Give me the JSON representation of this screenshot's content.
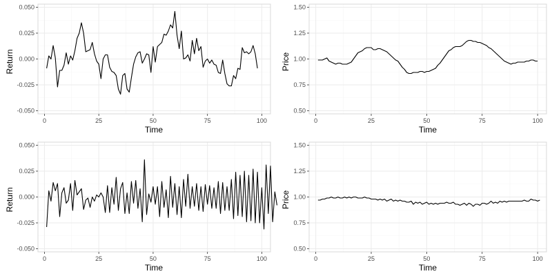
{
  "figure": {
    "panel_border_color": "#d9d9d9",
    "grid_major_color": "#ebebeb",
    "grid_minor_color": "#f4f4f4",
    "line_color": "#000000"
  },
  "chart_data": [
    {
      "type": "line",
      "position": "top-left",
      "xlabel": "Time",
      "ylabel": "Return",
      "xlim": [
        -3,
        104
      ],
      "ylim": [
        -0.053,
        0.053
      ],
      "x_ticks": [
        0,
        25,
        50,
        75,
        100
      ],
      "x_tick_labels": [
        "0",
        "25",
        "50",
        "75",
        "100"
      ],
      "y_ticks": [
        -0.05,
        -0.025,
        0,
        0.025,
        0.05
      ],
      "y_tick_labels": [
        "-0.050",
        "-0.025",
        "0.000",
        "0.025",
        "0.050"
      ],
      "grid": true,
      "series": [
        {
          "x_start": 1,
          "values": [
            -0.009,
            0.003,
            0.0,
            0.013,
            0.001,
            -0.027,
            -0.011,
            -0.011,
            -0.006,
            0.006,
            -0.005,
            0.003,
            -0.001,
            0.008,
            0.02,
            0.025,
            0.035,
            0.025,
            0.007,
            0.008,
            0.009,
            0.016,
            0.005,
            -0.002,
            -0.005,
            -0.019,
            0.0,
            0.004,
            0.004,
            -0.008,
            -0.012,
            -0.013,
            -0.016,
            -0.029,
            -0.034,
            -0.016,
            -0.014,
            -0.029,
            -0.032,
            -0.018,
            -0.005,
            0.002,
            0.006,
            0.007,
            -0.004,
            -0.0,
            0.005,
            0.004,
            -0.013,
            0.012,
            -0.003,
            0.012,
            0.014,
            0.016,
            0.024,
            0.023,
            0.027,
            0.033,
            0.03,
            0.046,
            0.023,
            0.01,
            0.027,
            0.0,
            0.001,
            0.004,
            -0.002,
            0.018,
            0.005,
            0.02,
            0.008,
            0.012,
            -0.008,
            -0.002,
            0.0,
            -0.004,
            -0.001,
            -0.005,
            -0.006,
            -0.013,
            -0.014,
            -0.001,
            -0.014,
            -0.024,
            -0.026,
            -0.026,
            -0.016,
            -0.019,
            -0.009,
            -0.01,
            0.011,
            0.006,
            0.007,
            0.005,
            0.007,
            0.013,
            0.005,
            -0.009
          ]
        }
      ]
    },
    {
      "type": "line",
      "position": "top-right",
      "xlabel": "Time",
      "ylabel": "Price",
      "xlim": [
        -3,
        104
      ],
      "ylim": [
        0.47,
        1.53
      ],
      "x_ticks": [
        0,
        25,
        50,
        75,
        100
      ],
      "x_tick_labels": [
        "0",
        "25",
        "50",
        "75",
        "100"
      ],
      "y_ticks": [
        0.5,
        0.75,
        1.0,
        1.25,
        1.5
      ],
      "y_tick_labels": [
        "0.50",
        "0.75",
        "1.00",
        "1.25",
        "1.50"
      ],
      "grid": true,
      "series": [
        {
          "x_start": 1,
          "values": [
            0.99,
            0.99,
            0.99,
            1.0,
            1.01,
            0.98,
            0.97,
            0.96,
            0.95,
            0.96,
            0.96,
            0.95,
            0.95,
            0.95,
            0.96,
            0.97,
            1.0,
            1.03,
            1.06,
            1.07,
            1.08,
            1.1,
            1.11,
            1.11,
            1.11,
            1.09,
            1.09,
            1.1,
            1.1,
            1.09,
            1.08,
            1.07,
            1.05,
            1.03,
            1.01,
            0.99,
            0.98,
            0.95,
            0.92,
            0.9,
            0.87,
            0.86,
            0.86,
            0.87,
            0.87,
            0.87,
            0.88,
            0.88,
            0.87,
            0.88,
            0.88,
            0.89,
            0.9,
            0.91,
            0.94,
            0.96,
            0.99,
            1.02,
            1.05,
            1.08,
            1.09,
            1.11,
            1.12,
            1.12,
            1.12,
            1.13,
            1.15,
            1.17,
            1.18,
            1.18,
            1.17,
            1.17,
            1.16,
            1.16,
            1.15,
            1.14,
            1.13,
            1.11,
            1.1,
            1.08,
            1.06,
            1.04,
            1.02,
            1.0,
            0.98,
            0.97,
            0.96,
            0.95,
            0.96,
            0.96,
            0.97,
            0.97,
            0.97,
            0.97,
            0.98,
            0.98,
            0.99,
            0.99,
            0.98,
            0.98
          ]
        }
      ]
    },
    {
      "type": "line",
      "position": "bottom-left",
      "xlabel": "Time",
      "ylabel": "Return",
      "xlim": [
        -3,
        104
      ],
      "ylim": [
        -0.053,
        0.053
      ],
      "x_ticks": [
        0,
        25,
        50,
        75,
        100
      ],
      "x_tick_labels": [
        "0",
        "25",
        "50",
        "75",
        "100"
      ],
      "y_ticks": [
        -0.05,
        -0.025,
        0,
        0.025,
        0.05
      ],
      "y_tick_labels": [
        "-0.050",
        "-0.025",
        "0.000",
        "0.025",
        "0.050"
      ],
      "grid": true,
      "series": [
        {
          "x_start": 1,
          "values": [
            -0.029,
            0.006,
            -0.004,
            0.014,
            0.006,
            0.013,
            -0.019,
            0.004,
            0.009,
            -0.006,
            -0.003,
            0.013,
            -0.013,
            0.016,
            0.002,
            0.005,
            0.008,
            -0.012,
            -0.003,
            -0.001,
            -0.01,
            0.0,
            -0.004,
            0.002,
            0.0,
            0.004,
            0.0,
            -0.015,
            0.011,
            -0.015,
            0.009,
            -0.007,
            0.019,
            -0.013,
            0.008,
            0.014,
            -0.016,
            0.004,
            -0.016,
            0.015,
            -0.006,
            0.016,
            -0.011,
            0.008,
            -0.024,
            0.036,
            -0.017,
            0.003,
            -0.005,
            0.01,
            -0.007,
            0.01,
            -0.019,
            0.015,
            -0.01,
            0.007,
            -0.02,
            0.02,
            -0.01,
            0.013,
            -0.017,
            0.01,
            -0.02,
            0.017,
            -0.009,
            0.022,
            -0.011,
            0.01,
            -0.009,
            0.013,
            -0.013,
            0.01,
            -0.014,
            0.012,
            -0.007,
            0.011,
            -0.011,
            0.009,
            -0.011,
            0.015,
            -0.016,
            0.014,
            -0.013,
            0.01,
            -0.013,
            0.017,
            -0.021,
            0.024,
            -0.018,
            0.021,
            -0.019,
            0.025,
            -0.024,
            0.021,
            -0.023,
            0.027,
            -0.025,
            0.024,
            -0.025,
            0.009,
            -0.031,
            0.031,
            -0.016,
            0.03,
            -0.024,
            0.005,
            -0.008
          ]
        }
      ]
    },
    {
      "type": "line",
      "position": "bottom-right",
      "xlabel": "Time",
      "ylabel": "Price",
      "xlim": [
        -3,
        104
      ],
      "ylim": [
        0.47,
        1.53
      ],
      "x_ticks": [
        0,
        25,
        50,
        75,
        100
      ],
      "x_tick_labels": [
        "0",
        "25",
        "50",
        "75",
        "100"
      ],
      "y_ticks": [
        0.5,
        0.75,
        1.0,
        1.25,
        1.5
      ],
      "y_tick_labels": [
        "0.50",
        "0.75",
        "1.00",
        "1.25",
        "1.50"
      ],
      "grid": true,
      "series": [
        {
          "x_start": 1,
          "values": [
            0.97,
            0.97,
            0.98,
            0.98,
            0.99,
            0.99,
            1.0,
            0.99,
            0.99,
            1.0,
            0.99,
            0.99,
            1.0,
            0.99,
            1.0,
            0.99,
            1.0,
            1.0,
            0.99,
            0.99,
            0.99,
            1.0,
            0.99,
            0.99,
            0.98,
            0.98,
            0.98,
            0.97,
            0.98,
            0.97,
            0.98,
            0.96,
            0.97,
            0.98,
            0.96,
            0.97,
            0.96,
            0.97,
            0.96,
            0.96,
            0.95,
            0.95,
            0.96,
            0.93,
            0.95,
            0.94,
            0.95,
            0.93,
            0.94,
            0.95,
            0.93,
            0.94,
            0.93,
            0.94,
            0.93,
            0.94,
            0.94,
            0.94,
            0.95,
            0.94,
            0.94,
            0.95,
            0.93,
            0.93,
            0.92,
            0.93,
            0.94,
            0.92,
            0.94,
            0.93,
            0.91,
            0.93,
            0.93,
            0.92,
            0.94,
            0.94,
            0.93,
            0.94,
            0.96,
            0.94,
            0.95,
            0.94,
            0.96,
            0.95,
            0.96,
            0.95,
            0.96,
            0.96,
            0.96,
            0.96,
            0.96,
            0.96,
            0.96,
            0.97,
            0.96,
            0.96,
            0.98,
            0.97,
            0.97,
            0.96,
            0.97
          ]
        }
      ]
    }
  ]
}
